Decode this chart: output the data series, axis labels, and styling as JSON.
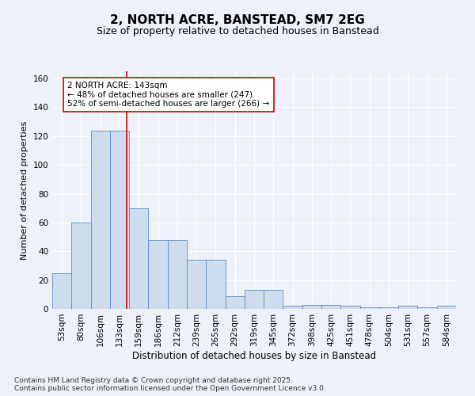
{
  "title": "2, NORTH ACRE, BANSTEAD, SM7 2EG",
  "subtitle": "Size of property relative to detached houses in Banstead",
  "xlabel": "Distribution of detached houses by size in Banstead",
  "ylabel": "Number of detached properties",
  "categories": [
    "53sqm",
    "80sqm",
    "106sqm",
    "133sqm",
    "159sqm",
    "186sqm",
    "212sqm",
    "239sqm",
    "265sqm",
    "292sqm",
    "319sqm",
    "345sqm",
    "372sqm",
    "398sqm",
    "425sqm",
    "451sqm",
    "478sqm",
    "504sqm",
    "531sqm",
    "557sqm",
    "584sqm"
  ],
  "values": [
    25,
    60,
    124,
    124,
    70,
    48,
    48,
    34,
    34,
    9,
    13,
    13,
    2,
    3,
    3,
    2,
    1,
    1,
    2,
    1,
    2
  ],
  "bar_color": "#cfdcee",
  "bar_edge_color": "#5b8dc8",
  "background_color": "#eef2f8",
  "plot_bg_color": "#eef2f8",
  "annotation_text": "2 NORTH ACRE: 143sqm\n← 48% of detached houses are smaller (247)\n52% of semi-detached houses are larger (266) →",
  "annotation_box_color": "#ffffff",
  "annotation_box_edge": "#cc0000",
  "ylim": [
    0,
    165
  ],
  "yticks": [
    0,
    20,
    40,
    60,
    80,
    100,
    120,
    140,
    160
  ],
  "footer": "Contains HM Land Registry data © Crown copyright and database right 2025.\nContains public sector information licensed under the Open Government Licence v3.0.",
  "title_fontsize": 11,
  "subtitle_fontsize": 9,
  "xlabel_fontsize": 8.5,
  "ylabel_fontsize": 8,
  "tick_fontsize": 7.5,
  "annotation_fontsize": 7.5,
  "footer_fontsize": 6.5
}
